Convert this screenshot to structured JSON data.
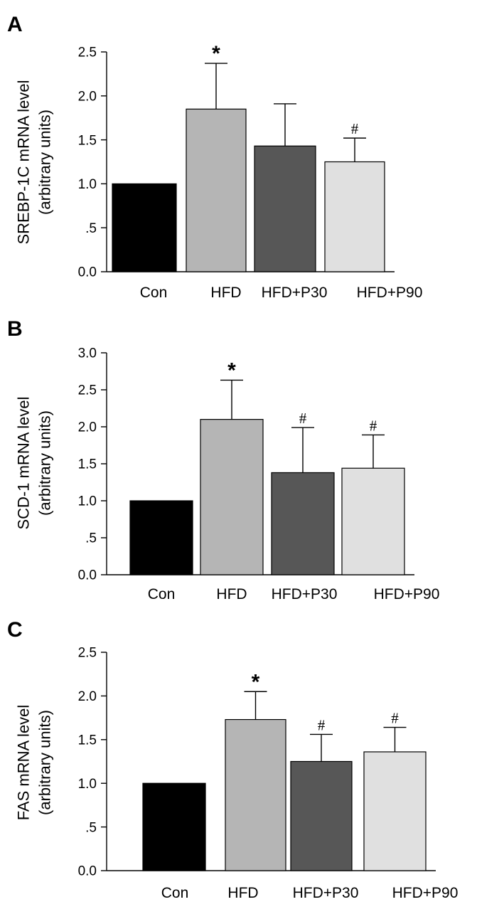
{
  "chart_data": [
    {
      "panel": "A",
      "type": "bar",
      "ylabel_line1": "SREBP-1C mRNA level",
      "ylabel_line2": "(arbitrary units)",
      "categories": [
        "Con",
        "HFD",
        "HFD+P30",
        "HFD+P90"
      ],
      "values": [
        1.0,
        1.85,
        1.43,
        1.25
      ],
      "errors": [
        0.0,
        0.52,
        0.48,
        0.27
      ],
      "annotations": [
        "",
        "*",
        "",
        "#"
      ],
      "bar_colors": [
        "#000000",
        "#b5b5b5",
        "#575757",
        "#e0e0e0"
      ],
      "ylim": [
        0,
        2.5
      ],
      "ticks": [
        0,
        0.5,
        1.0,
        1.5,
        2.0,
        2.5
      ],
      "tick_labels": [
        "0.0",
        ".5",
        "1.0",
        "1.5",
        "2.0",
        "2.5"
      ]
    },
    {
      "panel": "B",
      "type": "bar",
      "ylabel_line1": "SCD-1 mRNA level",
      "ylabel_line2": "(arbitrary units)",
      "categories": [
        "Con",
        "HFD",
        "HFD+P30",
        "HFD+P90"
      ],
      "values": [
        1.0,
        2.1,
        1.38,
        1.44
      ],
      "errors": [
        0.0,
        0.53,
        0.61,
        0.45
      ],
      "annotations": [
        "",
        "*",
        "#",
        "#"
      ],
      "bar_colors": [
        "#000000",
        "#b5b5b5",
        "#575757",
        "#e0e0e0"
      ],
      "ylim": [
        0,
        3.0
      ],
      "ticks": [
        0,
        0.5,
        1.0,
        1.5,
        2.0,
        2.5,
        3.0
      ],
      "tick_labels": [
        "0.0",
        ".5",
        "1.0",
        "1.5",
        "2.0",
        "2.5",
        "3.0"
      ]
    },
    {
      "panel": "C",
      "type": "bar",
      "ylabel_line1": "FAS mRNA level",
      "ylabel_line2": "(arbitrary units)",
      "categories": [
        "Con",
        "HFD",
        "HFD+P30",
        "HFD+P90"
      ],
      "values": [
        1.0,
        1.73,
        1.25,
        1.36
      ],
      "errors": [
        0.0,
        0.32,
        0.31,
        0.28
      ],
      "annotations": [
        "",
        "*",
        "#",
        "#"
      ],
      "bar_colors": [
        "#000000",
        "#b5b5b5",
        "#575757",
        "#e0e0e0"
      ],
      "ylim": [
        0,
        2.5
      ],
      "ticks": [
        0,
        0.5,
        1.0,
        1.5,
        2.0,
        2.5
      ],
      "tick_labels": [
        "0.0",
        ".5",
        "1.0",
        "1.5",
        "2.0",
        "2.5"
      ]
    }
  ]
}
